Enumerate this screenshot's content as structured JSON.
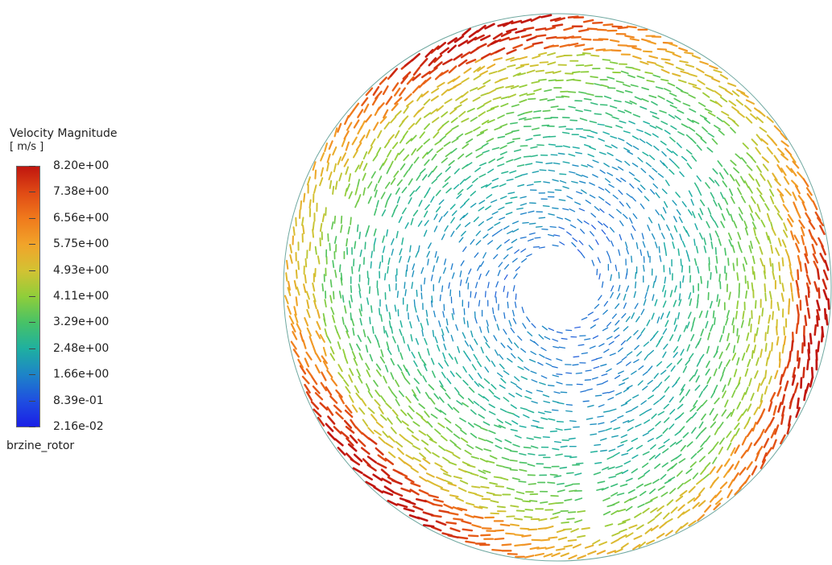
{
  "legend": {
    "title": "Velocity Magnitude",
    "unit": "[ m/s ]",
    "labels": [
      "8.20e+00",
      "7.38e+00",
      "6.56e+00",
      "5.75e+00",
      "4.93e+00",
      "4.11e+00",
      "3.29e+00",
      "2.48e+00",
      "1.66e+00",
      "8.39e-01",
      "2.16e-02"
    ],
    "colors": [
      "#c0160f",
      "#e04a15",
      "#f07a1c",
      "#f1a42a",
      "#d3c233",
      "#8fce3a",
      "#47c267",
      "#1fb0a0",
      "#1d84c8",
      "#1f4fe0",
      "#1a1fe6"
    ]
  },
  "zone_label": "brzine_rotor"
}
